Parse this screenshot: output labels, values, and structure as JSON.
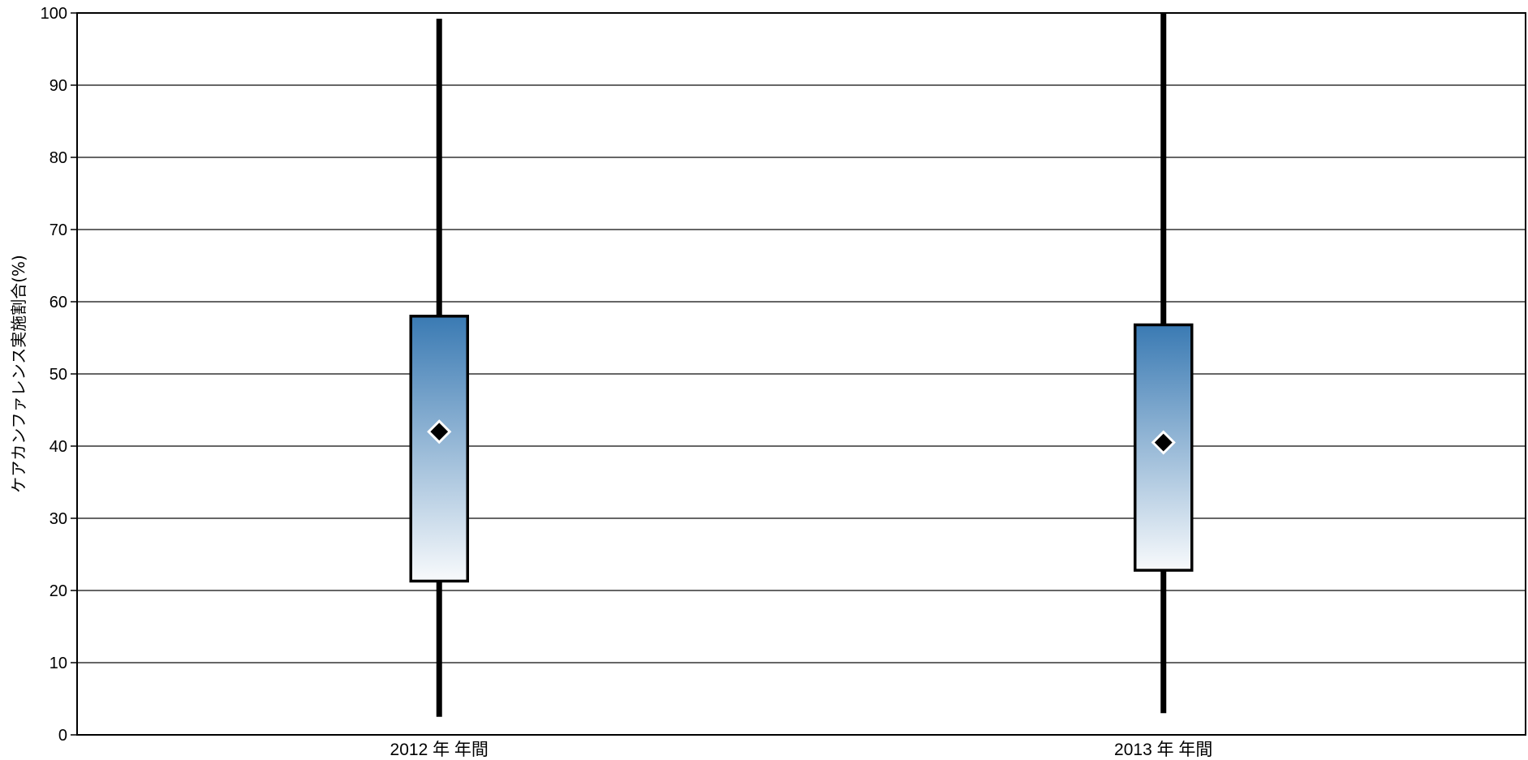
{
  "chart_data": {
    "type": "box",
    "title": "",
    "xlabel": "",
    "ylabel": "ケアカンファレンス実施割合(%)",
    "ylim": [
      0,
      100
    ],
    "yticks": [
      0,
      10,
      20,
      30,
      40,
      50,
      60,
      70,
      80,
      90,
      100
    ],
    "grid": true,
    "categories": [
      "2012 年 年間",
      "2013 年 年間"
    ],
    "boxes": [
      {
        "category": "2012 年 年間",
        "min": 2.5,
        "q1": 21.3,
        "q3": 58.0,
        "max": 99.2,
        "mean": 42.0
      },
      {
        "category": "2013 年 年間",
        "min": 3.0,
        "q1": 22.8,
        "q3": 56.8,
        "max": 100.0,
        "mean": 40.5
      }
    ],
    "colors": {
      "box_top": "#3a7ab3",
      "box_bottom": "#f8fafc",
      "line": "#000000",
      "grid": "#333333",
      "mean_marker": "#000000"
    }
  }
}
